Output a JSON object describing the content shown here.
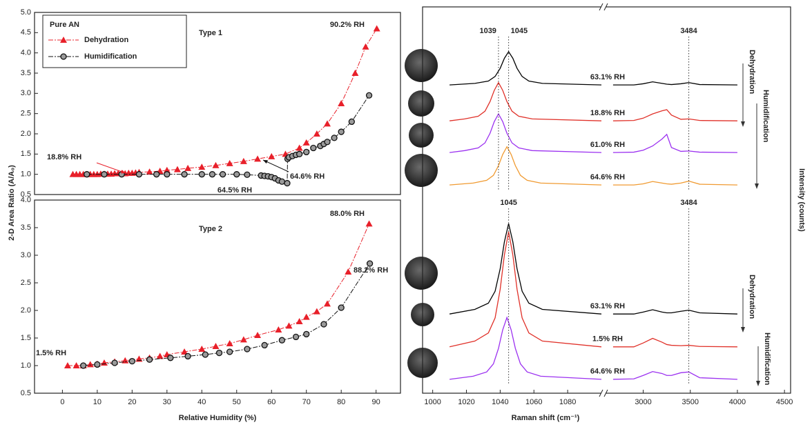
{
  "chart_data": [
    {
      "type": "line",
      "ylabel": "2-D Area Ratio (A/A₀)",
      "xlim": [
        -8,
        97
      ],
      "ylim": [
        0.5,
        5.0
      ],
      "yticks": [
        0.5,
        {
          "value": 1,
          "label": "1.0"
        },
        1.5,
        {
          "value": 2,
          "label": "2.0"
        },
        2.5,
        {
          "value": 3,
          "label": "3.0"
        },
        3.5,
        {
          "value": 4,
          "label": "4.0"
        },
        4.5,
        {
          "value": 5,
          "label": "5.0"
        }
      ],
      "legend": {
        "title": "Pure AN",
        "position": "upper left"
      },
      "series": [
        {
          "name": "Dehydration",
          "color": "#e8202a",
          "marker": "triangle",
          "x": [
            3,
            4,
            5,
            6,
            7,
            8,
            9,
            10,
            11,
            12,
            13,
            14,
            15,
            16,
            17,
            18,
            19,
            20,
            21,
            22,
            25,
            28,
            30,
            33,
            36,
            40,
            44,
            48,
            52,
            56,
            60,
            64,
            68,
            70,
            73,
            76,
            80,
            84,
            87,
            90.2
          ],
          "values": [
            1.0,
            1.0,
            1.0,
            1.0,
            1.0,
            1.0,
            1.0,
            1.0,
            1.01,
            1.01,
            1.01,
            1.01,
            1.02,
            1.02,
            1.02,
            1.02,
            1.03,
            1.03,
            1.04,
            1.05,
            1.06,
            1.08,
            1.1,
            1.12,
            1.15,
            1.18,
            1.22,
            1.27,
            1.32,
            1.38,
            1.44,
            1.5,
            1.65,
            1.78,
            2.0,
            2.25,
            2.75,
            3.5,
            4.15,
            4.6
          ]
        },
        {
          "name": "Humidification",
          "color": "#111111",
          "marker": "circle",
          "x": [
            7,
            12,
            17,
            22,
            27,
            30,
            35,
            40,
            43,
            46,
            50,
            53,
            57,
            58,
            59,
            60,
            61,
            62,
            63,
            64.5,
            64.6,
            65,
            66,
            67,
            68,
            70,
            72,
            74,
            75,
            76,
            78,
            80,
            83,
            88
          ],
          "values": [
            1.0,
            1.0,
            1.0,
            1.0,
            1.0,
            1.0,
            1.0,
            1.0,
            1.0,
            1.0,
            1.0,
            0.99,
            0.97,
            0.96,
            0.95,
            0.93,
            0.9,
            0.85,
            0.82,
            0.78,
            1.38,
            1.42,
            1.45,
            1.48,
            1.5,
            1.55,
            1.65,
            1.7,
            1.75,
            1.8,
            1.9,
            2.05,
            2.3,
            2.95
          ]
        }
      ],
      "annotations": [
        {
          "text": "Type 1",
          "color": "#111111"
        },
        {
          "text": "90.2% RH",
          "color": "#e8202a"
        },
        {
          "text": "18.8% RH",
          "color": "#e8202a"
        },
        {
          "text": "64.6% RH",
          "color": "#111111"
        },
        {
          "text": "64.5% RH",
          "color": "#111111"
        }
      ]
    },
    {
      "type": "line",
      "xlabel": "Relative Humidity (%)",
      "xlim": [
        -8,
        97
      ],
      "xticks": [
        0,
        10,
        20,
        30,
        40,
        50,
        60,
        70,
        80,
        90
      ],
      "ylim": [
        0.5,
        4.0
      ],
      "yticks": [
        0.5,
        {
          "value": 1,
          "label": "1.0"
        },
        1.5,
        {
          "value": 2,
          "label": "2.0"
        },
        2.5,
        {
          "value": 3,
          "label": "3.0"
        },
        3.5,
        {
          "value": 4,
          "label": "4.0"
        }
      ],
      "series": [
        {
          "color": "#e8202a",
          "marker": "triangle",
          "x": [
            1.5,
            4,
            6,
            8,
            10,
            12,
            15,
            18,
            22,
            25,
            28,
            30,
            35,
            40,
            44,
            48,
            52,
            56,
            62,
            65,
            68,
            70,
            73,
            76,
            82,
            88
          ],
          "values": [
            1.0,
            1.0,
            1.0,
            1.02,
            1.03,
            1.05,
            1.07,
            1.09,
            1.12,
            1.14,
            1.17,
            1.2,
            1.25,
            1.3,
            1.35,
            1.4,
            1.47,
            1.55,
            1.65,
            1.72,
            1.8,
            1.88,
            1.98,
            2.12,
            2.7,
            3.57
          ]
        },
        {
          "color": "#111111",
          "marker": "circle",
          "x": [
            6,
            10,
            15,
            20,
            25,
            31,
            36,
            41,
            45,
            48,
            53,
            58,
            63,
            67,
            70,
            75,
            80,
            88.2
          ],
          "values": [
            1.0,
            1.02,
            1.05,
            1.08,
            1.11,
            1.14,
            1.17,
            1.2,
            1.23,
            1.25,
            1.3,
            1.37,
            1.46,
            1.52,
            1.57,
            1.75,
            2.05,
            2.85
          ]
        }
      ],
      "annotations": [
        {
          "text": "Type 2",
          "color": "#111111"
        },
        {
          "text": "88.0% RH",
          "color": "#e8202a"
        },
        {
          "text": "88.2% RH",
          "color": "#111111"
        },
        {
          "text": "1.5% RH",
          "color": "#e8202a"
        }
      ]
    },
    {
      "type": "spectra",
      "xlabel": "Raman shift (cm⁻¹)",
      "ylabel": "Intensity (counts)",
      "xlim": [
        994,
        4565
      ],
      "xbreak": [
        1100,
        2600
      ],
      "xticks": [
        1000,
        1020,
        1040,
        1060,
        1080,
        3000,
        3500,
        4000,
        4500
      ],
      "ylim": [
        0,
        100
      ],
      "panels": [
        {
          "peaks": [
            1039,
            1045,
            3484
          ],
          "arrows": [
            "Dehydration",
            "Humidification"
          ],
          "series": [
            {
              "name": "63.1% RH",
              "color": "#000000",
              "x": [
                1010,
                1025,
                1033,
                1037,
                1040,
                1042.5,
                1045,
                1047.5,
                1050,
                1053,
                1057,
                1065,
                1100,
                2680,
                2900,
                3000,
                3100,
                3200,
                3250,
                3300,
                3400,
                3484,
                3600,
                4000
              ],
              "values": [
                79.8,
                80.2,
                80.8,
                82.0,
                84.1,
                86.7,
                88.4,
                86.7,
                84.1,
                82.0,
                80.8,
                80.2,
                79.8,
                79.8,
                79.8,
                80.1,
                80.6,
                80.2,
                80.0,
                79.9,
                80.1,
                80.4,
                79.9,
                79.8
              ]
            },
            {
              "name": "18.8% RH",
              "color": "#e03028",
              "x": [
                1010,
                1019,
                1027,
                1031,
                1034,
                1036.5,
                1039,
                1041.5,
                1044,
                1047,
                1051,
                1059,
                1100,
                2680,
                2900,
                3000,
                3100,
                3200,
                3250,
                3300,
                3400,
                3484,
                3600,
                4000
              ],
              "values": [
                70.5,
                71.0,
                71.7,
                73.0,
                75.5,
                78.4,
                80.4,
                78.4,
                75.5,
                73.0,
                71.7,
                71.0,
                70.5,
                70.5,
                70.6,
                71.2,
                72.3,
                73.1,
                73.4,
                72.0,
                70.9,
                71.0,
                70.6,
                70.5
              ]
            },
            {
              "name": "61.0% RH",
              "color": "#9b30f0",
              "x": [
                1010,
                1019,
                1027,
                1031,
                1034,
                1036.5,
                1039,
                1041.5,
                1044,
                1047,
                1051,
                1059,
                1100,
                2680,
                2900,
                3000,
                3100,
                3200,
                3250,
                3300,
                3400,
                3484,
                3600,
                4000
              ],
              "values": [
                62.3,
                62.8,
                63.5,
                64.8,
                67.3,
                70.3,
                72.3,
                70.3,
                67.3,
                64.8,
                63.5,
                62.8,
                62.3,
                62.3,
                62.4,
                62.9,
                64.0,
                65.8,
                67.0,
                63.6,
                62.6,
                62.7,
                62.4,
                62.3
              ]
            },
            {
              "name": "64.6% RH",
              "color": "#f09a30",
              "x": [
                1010,
                1024,
                1032,
                1036,
                1039,
                1041.5,
                1044,
                1046.5,
                1049,
                1052,
                1056,
                1064,
                1100,
                2680,
                2900,
                3000,
                3100,
                3200,
                3250,
                3300,
                3400,
                3484,
                3600,
                4000
              ],
              "values": [
                53.9,
                54.4,
                55.1,
                56.4,
                58.9,
                61.8,
                63.8,
                61.8,
                58.9,
                56.4,
                55.1,
                54.4,
                53.9,
                53.9,
                53.9,
                54.2,
                54.8,
                54.4,
                54.2,
                54.1,
                54.4,
                54.9,
                54.1,
                53.9
              ]
            }
          ]
        },
        {
          "peaks": [
            1045,
            3484
          ],
          "arrows": [
            "Dehydration",
            "Humidification"
          ],
          "series": [
            {
              "name": "63.1% RH",
              "color": "#000000",
              "x": [
                1010,
                1025,
                1033,
                1037,
                1040,
                1042.5,
                1045,
                1047.5,
                1050,
                1053,
                1057,
                1065,
                1100,
                2680,
                2900,
                3000,
                3100,
                3200,
                3250,
                3300,
                3400,
                3484,
                3600,
                4000
              ],
              "values": [
                20.5,
                21.7,
                23.3,
                26.4,
                32.2,
                39.2,
                43.9,
                39.2,
                32.2,
                26.4,
                23.3,
                21.7,
                20.5,
                20.5,
                20.5,
                21.0,
                21.6,
                21.0,
                20.8,
                20.8,
                21.2,
                21.5,
                20.8,
                20.5
              ]
            },
            {
              "name": "1.5% RH",
              "color": "#e03028",
              "x": [
                1010,
                1025,
                1033,
                1037,
                1040,
                1042.5,
                1045,
                1047.5,
                1050,
                1053,
                1057,
                1065,
                1100,
                2680,
                2900,
                3000,
                3100,
                3200,
                3250,
                3300,
                3400,
                3484,
                3600,
                4000
              ],
              "values": [
                12.0,
                13.5,
                15.6,
                19.5,
                26.9,
                35.8,
                41.8,
                35.8,
                26.9,
                19.5,
                15.6,
                13.5,
                12.0,
                12.0,
                12.0,
                13.0,
                14.2,
                13.2,
                12.6,
                12.4,
                12.3,
                12.4,
                12.1,
                12.0
              ]
            },
            {
              "name": "64.6% RH",
              "color": "#9b30f0",
              "x": [
                1010,
                1024,
                1032,
                1036,
                1039,
                1041.5,
                1044,
                1046.5,
                1049,
                1052,
                1056,
                1064,
                1100,
                2680,
                2900,
                3000,
                3100,
                3200,
                3250,
                3300,
                3400,
                3484,
                3600,
                4000
              ],
              "values": [
                3.6,
                4.4,
                5.5,
                7.6,
                11.6,
                16.4,
                19.6,
                16.4,
                11.6,
                7.6,
                5.5,
                4.4,
                3.6,
                3.6,
                3.7,
                4.6,
                5.6,
                5.1,
                4.6,
                4.6,
                5.3,
                5.5,
                4.0,
                3.6
              ]
            }
          ]
        }
      ]
    }
  ]
}
